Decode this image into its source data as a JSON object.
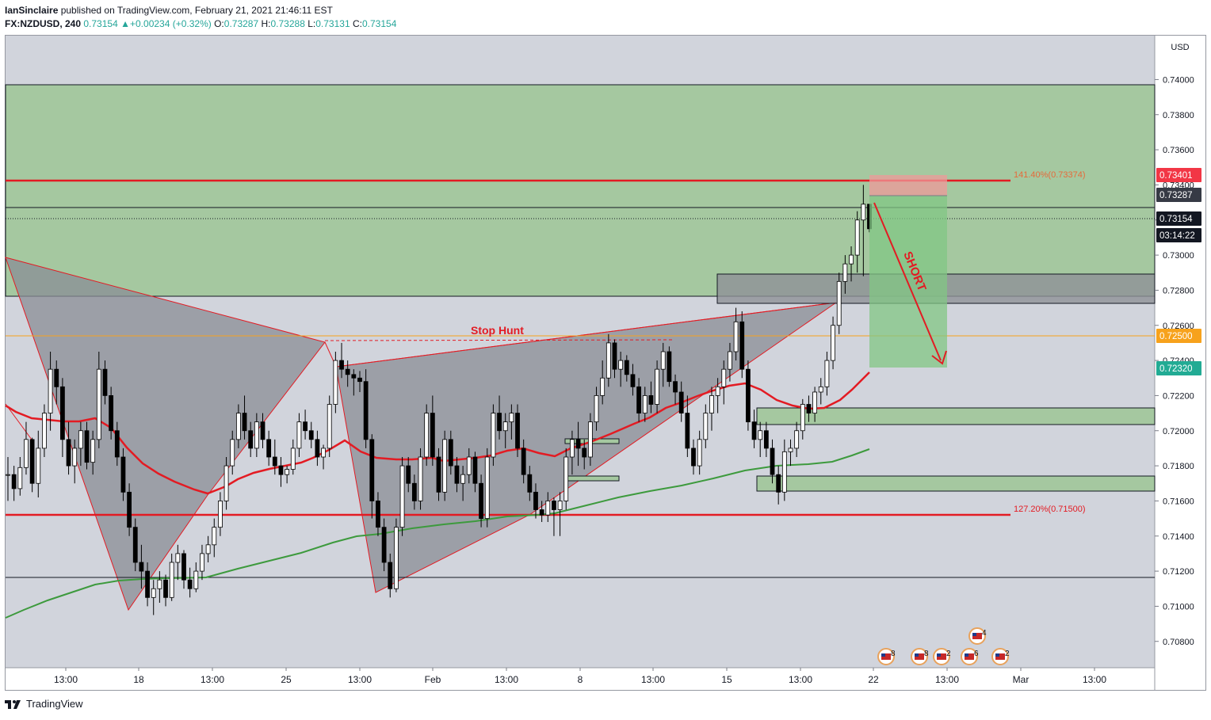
{
  "header": {
    "publisher": "IanSinclaire",
    "published_text": " published on TradingView.com, February 21, 2021 21:46:11 EST",
    "symbol": "FX:NZDUSD, 240",
    "last": "0.73154",
    "arrow": "▲",
    "change": "+0.00234 (+0.32%)",
    "o_label": "O:",
    "o_value": "0.73287",
    "h_label": "H:",
    "h_value": "0.73288",
    "l_label": "L:",
    "l_value": "0.73131",
    "c_label": "C:",
    "c_value": "0.73154"
  },
  "footer": {
    "brand": "TradingView",
    "logo_icon": "tradingview-logo-icon"
  },
  "colors": {
    "chart_bg": "#d1d4dc",
    "zone_green": "#a5c8a0",
    "red": "#e31b23",
    "green_ma": "#3d9a3d",
    "orange": "#f7a21c",
    "badge_red": "#f23645",
    "badge_green": "#22ab94",
    "badge_dark": "#363a45"
  },
  "chart_data": {
    "type": "candlestick",
    "symbol": "FX:NZDUSD",
    "timeframe": "240",
    "currency": "USD",
    "ylim": [
      0.7065,
      0.7425
    ],
    "x_ticks": [
      "13:00",
      "18",
      "13:00",
      "25",
      "13:00",
      "Feb",
      "13:00",
      "8",
      "13:00",
      "15",
      "13:00",
      "22",
      "13:00",
      "Mar",
      "13:00"
    ],
    "y_ticks": [
      "0.74000",
      "0.73800",
      "0.73600",
      "0.73400",
      "0.73200",
      "0.73000",
      "0.72800",
      "0.72600",
      "0.72400",
      "0.72200",
      "0.72000",
      "0.71800",
      "0.71600",
      "0.71400",
      "0.71200",
      "0.71000",
      "0.70800"
    ],
    "price_badges": [
      {
        "label": "0.73401",
        "color": "#f23645"
      },
      {
        "label": "0.73287",
        "color": "#363a45"
      },
      {
        "label": "0.73154",
        "color": "#131722"
      },
      {
        "label": "03:14:22",
        "color": "#131722"
      },
      {
        "label": "0.72500",
        "color": "#f7a21c"
      },
      {
        "label": "0.72320",
        "color": "#22ab94"
      }
    ],
    "annotations": {
      "fib_top": "141.40%(0.73374)",
      "fib_bottom": "127.20%(0.71500)",
      "stop_hunt": "Stop Hunt",
      "short": "SHORT"
    },
    "levels": [
      {
        "name": "entry",
        "value": 0.73287
      },
      {
        "name": "stop",
        "value": 0.73401
      },
      {
        "name": "target",
        "value": 0.7232
      },
      {
        "name": "stop-hunt",
        "value": 0.725
      },
      {
        "name": "fib-141",
        "value": 0.73374
      },
      {
        "name": "fib-127",
        "value": 0.715
      },
      {
        "name": "support",
        "value": 0.71145
      }
    ],
    "events": [
      {
        "label": "8"
      },
      {
        "label": "8"
      },
      {
        "label": "2"
      },
      {
        "label": "6"
      },
      {
        "label": "2"
      },
      {
        "label": "4"
      }
    ],
    "candles": [
      [
        0.7175,
        0.7185,
        0.716,
        0.7175
      ],
      [
        0.7175,
        0.718,
        0.716,
        0.7167
      ],
      [
        0.7167,
        0.7185,
        0.7163,
        0.7179
      ],
      [
        0.7179,
        0.7205,
        0.7175,
        0.7195
      ],
      [
        0.7195,
        0.7196,
        0.7165,
        0.717
      ],
      [
        0.717,
        0.72,
        0.7162,
        0.719
      ],
      [
        0.719,
        0.7215,
        0.7185,
        0.721
      ],
      [
        0.721,
        0.7245,
        0.72,
        0.7235
      ],
      [
        0.7235,
        0.724,
        0.7215,
        0.7225
      ],
      [
        0.7225,
        0.723,
        0.7185,
        0.7195
      ],
      [
        0.7195,
        0.7205,
        0.7175,
        0.718
      ],
      [
        0.718,
        0.7195,
        0.717,
        0.719
      ],
      [
        0.719,
        0.7205,
        0.718,
        0.72
      ],
      [
        0.72,
        0.7205,
        0.7178,
        0.7182
      ],
      [
        0.7182,
        0.72,
        0.7175,
        0.7195
      ],
      [
        0.7195,
        0.7245,
        0.719,
        0.7235
      ],
      [
        0.7235,
        0.724,
        0.7215,
        0.722
      ],
      [
        0.722,
        0.7225,
        0.7195,
        0.72
      ],
      [
        0.72,
        0.7205,
        0.718,
        0.7185
      ],
      [
        0.7185,
        0.719,
        0.716,
        0.7165
      ],
      [
        0.7165,
        0.717,
        0.714,
        0.7145
      ],
      [
        0.7145,
        0.715,
        0.712,
        0.7125
      ],
      [
        0.7125,
        0.7135,
        0.711,
        0.712
      ],
      [
        0.712,
        0.7125,
        0.71,
        0.7105
      ],
      [
        0.7105,
        0.7115,
        0.7095,
        0.711
      ],
      [
        0.711,
        0.712,
        0.7102,
        0.7115
      ],
      [
        0.7115,
        0.7118,
        0.71,
        0.7105
      ],
      [
        0.7105,
        0.713,
        0.7103,
        0.7125
      ],
      [
        0.7125,
        0.7135,
        0.7115,
        0.713
      ],
      [
        0.713,
        0.7132,
        0.711,
        0.7115
      ],
      [
        0.7115,
        0.7122,
        0.7105,
        0.711
      ],
      [
        0.711,
        0.7125,
        0.7108,
        0.712
      ],
      [
        0.712,
        0.7135,
        0.7115,
        0.713
      ],
      [
        0.713,
        0.714,
        0.7125,
        0.7135
      ],
      [
        0.7135,
        0.715,
        0.7128,
        0.7145
      ],
      [
        0.7145,
        0.7165,
        0.714,
        0.716
      ],
      [
        0.716,
        0.7185,
        0.7155,
        0.718
      ],
      [
        0.718,
        0.72,
        0.7175,
        0.7195
      ],
      [
        0.7195,
        0.7215,
        0.719,
        0.721
      ],
      [
        0.721,
        0.722,
        0.7195,
        0.72
      ],
      [
        0.72,
        0.7205,
        0.7185,
        0.719
      ],
      [
        0.719,
        0.721,
        0.7185,
        0.7205
      ],
      [
        0.7205,
        0.721,
        0.719,
        0.7195
      ],
      [
        0.7195,
        0.72,
        0.718,
        0.7185
      ],
      [
        0.7185,
        0.7195,
        0.7175,
        0.718
      ],
      [
        0.718,
        0.7185,
        0.7168,
        0.7175
      ],
      [
        0.7175,
        0.718,
        0.717,
        0.7178
      ],
      [
        0.7178,
        0.7195,
        0.7175,
        0.719
      ],
      [
        0.719,
        0.721,
        0.7185,
        0.7205
      ],
      [
        0.7205,
        0.7212,
        0.7195,
        0.72
      ],
      [
        0.72,
        0.7205,
        0.719,
        0.7195
      ],
      [
        0.7195,
        0.72,
        0.718,
        0.7185
      ],
      [
        0.7185,
        0.7192,
        0.7178,
        0.719
      ],
      [
        0.719,
        0.722,
        0.7185,
        0.7215
      ],
      [
        0.7215,
        0.7245,
        0.721,
        0.724
      ],
      [
        0.724,
        0.725,
        0.723,
        0.7235
      ],
      [
        0.7235,
        0.724,
        0.7225,
        0.7232
      ],
      [
        0.7232,
        0.7235,
        0.722,
        0.723
      ],
      [
        0.723,
        0.7234,
        0.7222,
        0.7228
      ],
      [
        0.7228,
        0.7235,
        0.719,
        0.7195
      ],
      [
        0.7195,
        0.7198,
        0.715,
        0.716
      ],
      [
        0.716,
        0.7165,
        0.714,
        0.7145
      ],
      [
        0.7145,
        0.715,
        0.712,
        0.7125
      ],
      [
        0.7125,
        0.713,
        0.7105,
        0.711
      ],
      [
        0.711,
        0.715,
        0.7108,
        0.7145
      ],
      [
        0.7145,
        0.7185,
        0.714,
        0.718
      ],
      [
        0.718,
        0.7185,
        0.7165,
        0.717
      ],
      [
        0.717,
        0.7175,
        0.7155,
        0.716
      ],
      [
        0.716,
        0.719,
        0.7155,
        0.7185
      ],
      [
        0.7185,
        0.7215,
        0.718,
        0.721
      ],
      [
        0.721,
        0.722,
        0.718,
        0.7185
      ],
      [
        0.7185,
        0.719,
        0.716,
        0.7165
      ],
      [
        0.7165,
        0.72,
        0.716,
        0.7195
      ],
      [
        0.7195,
        0.72,
        0.7175,
        0.718
      ],
      [
        0.718,
        0.7185,
        0.7165,
        0.717
      ],
      [
        0.717,
        0.718,
        0.716,
        0.7175
      ],
      [
        0.7175,
        0.719,
        0.717,
        0.7185
      ],
      [
        0.7185,
        0.7188,
        0.7165,
        0.717
      ],
      [
        0.717,
        0.7175,
        0.7145,
        0.715
      ],
      [
        0.715,
        0.719,
        0.7145,
        0.7185
      ],
      [
        0.7185,
        0.7215,
        0.718,
        0.721
      ],
      [
        0.721,
        0.722,
        0.7195,
        0.72
      ],
      [
        0.72,
        0.721,
        0.719,
        0.7205
      ],
      [
        0.7205,
        0.7215,
        0.7195,
        0.721
      ],
      [
        0.721,
        0.7215,
        0.7185,
        0.719
      ],
      [
        0.719,
        0.7195,
        0.717,
        0.7175
      ],
      [
        0.7175,
        0.718,
        0.716,
        0.7165
      ],
      [
        0.7165,
        0.717,
        0.715,
        0.7155
      ],
      [
        0.7155,
        0.716,
        0.7148,
        0.7152
      ],
      [
        0.7152,
        0.7165,
        0.7148,
        0.716
      ],
      [
        0.716,
        0.7162,
        0.714,
        0.7155
      ],
      [
        0.7155,
        0.7165,
        0.714,
        0.716
      ],
      [
        0.716,
        0.719,
        0.7155,
        0.7185
      ],
      [
        0.7185,
        0.72,
        0.7175,
        0.7195
      ],
      [
        0.7195,
        0.7205,
        0.718,
        0.719
      ],
      [
        0.719,
        0.7195,
        0.7178,
        0.7185
      ],
      [
        0.7185,
        0.721,
        0.718,
        0.7205
      ],
      [
        0.7205,
        0.7225,
        0.72,
        0.722
      ],
      [
        0.722,
        0.724,
        0.7215,
        0.723
      ],
      [
        0.723,
        0.7255,
        0.7225,
        0.725
      ],
      [
        0.725,
        0.7252,
        0.723,
        0.7235
      ],
      [
        0.7235,
        0.7245,
        0.7225,
        0.724
      ],
      [
        0.724,
        0.7243,
        0.7228,
        0.7232
      ],
      [
        0.7232,
        0.7238,
        0.722,
        0.7225
      ],
      [
        0.7225,
        0.723,
        0.7205,
        0.721
      ],
      [
        0.721,
        0.7225,
        0.7205,
        0.722
      ],
      [
        0.722,
        0.7228,
        0.721,
        0.7215
      ],
      [
        0.7215,
        0.724,
        0.721,
        0.7235
      ],
      [
        0.7235,
        0.725,
        0.7225,
        0.7245
      ],
      [
        0.7245,
        0.7248,
        0.7225,
        0.7228
      ],
      [
        0.7228,
        0.7232,
        0.7215,
        0.7222
      ],
      [
        0.7222,
        0.7228,
        0.7205,
        0.721
      ],
      [
        0.721,
        0.722,
        0.7185,
        0.719
      ],
      [
        0.719,
        0.7195,
        0.7175,
        0.718
      ],
      [
        0.718,
        0.72,
        0.7175,
        0.7195
      ],
      [
        0.7195,
        0.7215,
        0.719,
        0.721
      ],
      [
        0.721,
        0.7225,
        0.72,
        0.722
      ],
      [
        0.722,
        0.723,
        0.721,
        0.7225
      ],
      [
        0.7225,
        0.724,
        0.7215,
        0.7235
      ],
      [
        0.7235,
        0.725,
        0.7228,
        0.7245
      ],
      [
        0.7245,
        0.727,
        0.724,
        0.7262
      ],
      [
        0.7262,
        0.7268,
        0.723,
        0.7235
      ],
      [
        0.7235,
        0.724,
        0.72,
        0.7205
      ],
      [
        0.7205,
        0.7212,
        0.719,
        0.7195
      ],
      [
        0.7195,
        0.7205,
        0.7185,
        0.72
      ],
      [
        0.72,
        0.7205,
        0.7185,
        0.719
      ],
      [
        0.719,
        0.7195,
        0.717,
        0.7175
      ],
      [
        0.7175,
        0.718,
        0.7158,
        0.7165
      ],
      [
        0.7165,
        0.7195,
        0.716,
        0.7188
      ],
      [
        0.7188,
        0.7195,
        0.718,
        0.719
      ],
      [
        0.719,
        0.7205,
        0.7185,
        0.72
      ],
      [
        0.72,
        0.7218,
        0.7195,
        0.7215
      ],
      [
        0.7215,
        0.722,
        0.7205,
        0.721
      ],
      [
        0.721,
        0.7225,
        0.7205,
        0.7222
      ],
      [
        0.7222,
        0.723,
        0.7215,
        0.7225
      ],
      [
        0.7225,
        0.7245,
        0.722,
        0.724
      ],
      [
        0.724,
        0.7265,
        0.7235,
        0.726
      ],
      [
        0.726,
        0.729,
        0.7255,
        0.7285
      ],
      [
        0.7285,
        0.73,
        0.7278,
        0.7295
      ],
      [
        0.7295,
        0.7305,
        0.7285,
        0.73
      ],
      [
        0.73,
        0.7325,
        0.729,
        0.732
      ],
      [
        0.732,
        0.734,
        0.7288,
        0.7329
      ],
      [
        0.7329,
        0.7329,
        0.7313,
        0.7315
      ]
    ]
  }
}
